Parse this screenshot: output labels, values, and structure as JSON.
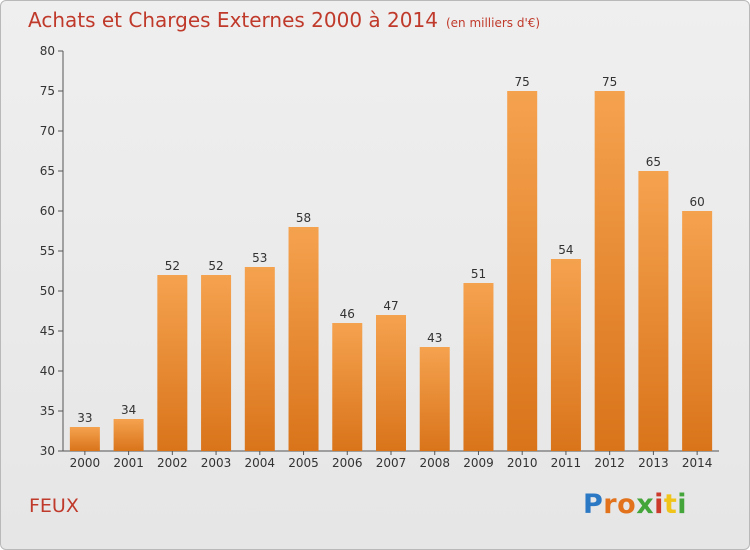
{
  "header": {
    "title": "Achats et Charges Externes 2000 à 2014",
    "unit": "(en milliers d'€)"
  },
  "footer": {
    "place": "FEUX",
    "logo": "Proxiti"
  },
  "colors": {
    "title": "#c03a2b",
    "bar_light": "#f5a24f",
    "bar_dark": "#d9741a",
    "axis": "#555555"
  },
  "chart_data": {
    "type": "bar",
    "title": "Achats et Charges Externes 2000 à 2014",
    "subtitle": "(en milliers d'€)",
    "categories": [
      "2000",
      "2001",
      "2002",
      "2003",
      "2004",
      "2005",
      "2006",
      "2007",
      "2008",
      "2009",
      "2010",
      "2011",
      "2012",
      "2013",
      "2014"
    ],
    "values": [
      33,
      34,
      52,
      52,
      53,
      58,
      46,
      47,
      43,
      51,
      75,
      54,
      75,
      65,
      60
    ],
    "ylim": [
      30,
      80
    ],
    "yticks": [
      30,
      35,
      40,
      45,
      50,
      55,
      60,
      65,
      70,
      75,
      80
    ],
    "grid": false,
    "data_labels": true
  }
}
